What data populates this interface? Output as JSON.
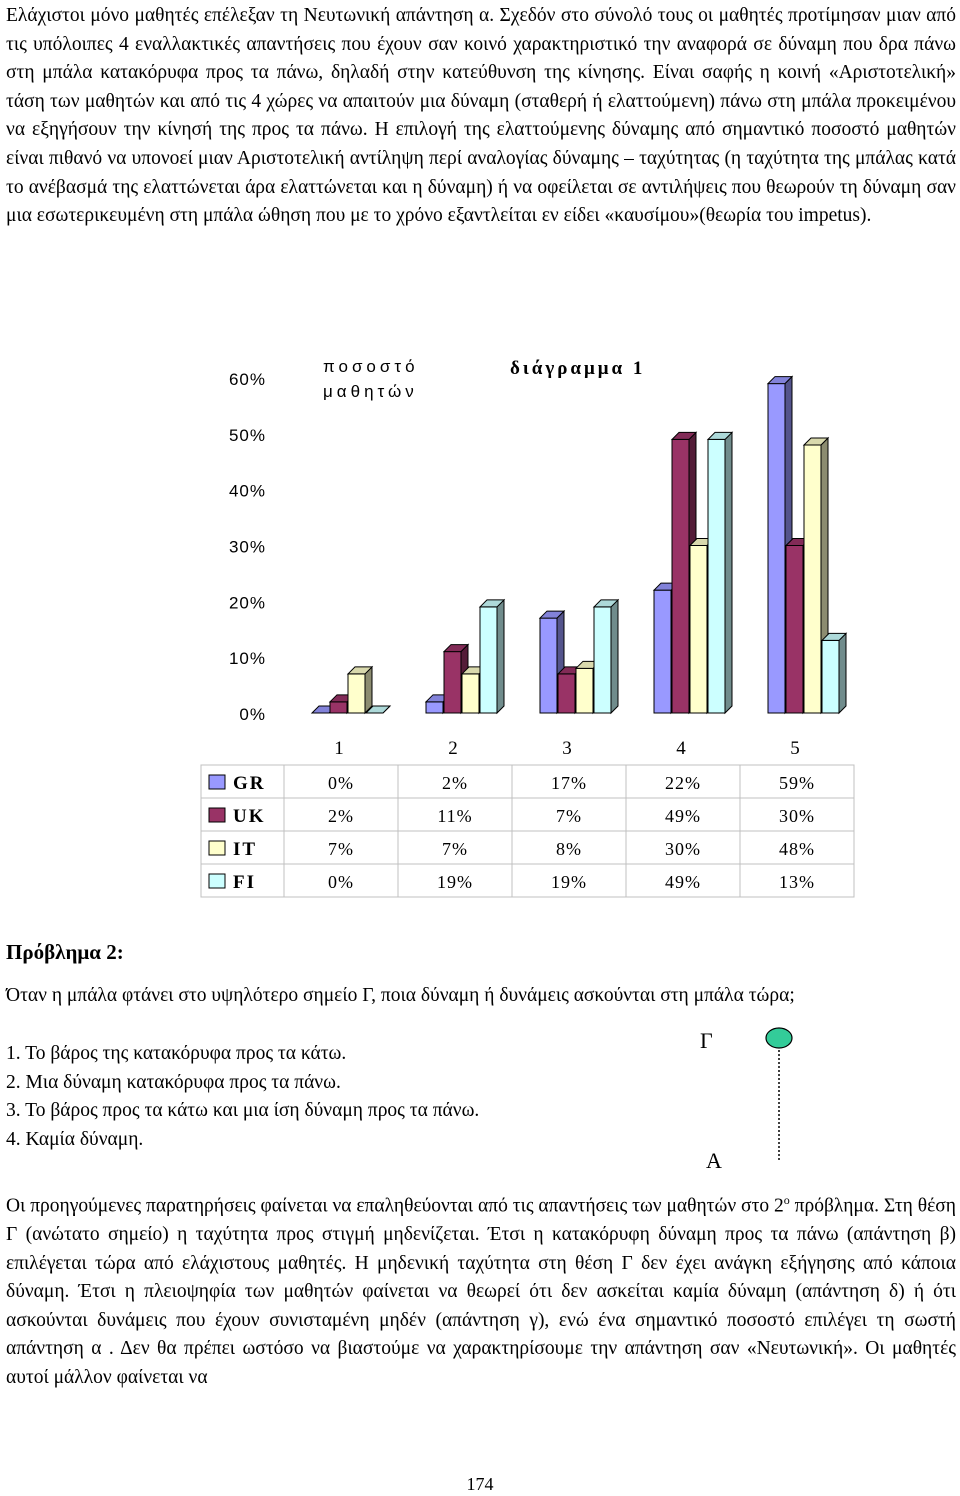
{
  "paragraph1": "Ελάχιστοι μόνο μαθητές επέλεξαν τη Νευτωνική απάντηση α. Σχεδόν στο σύνολό τους οι μαθητές προτίμησαν μιαν από τις υπόλοιπες 4 εναλλακτικές απαντήσεις που έχουν σαν κοινό χαρακτηριστικό την αναφορά σε δύναμη που δρα πάνω στη μπάλα κατακόρυφα προς τα πάνω, δηλαδή στην κατεύθυνση της κίνησης. Είναι σαφής η κοινή «Αριστοτελική» τάση των μαθητών και από τις 4 χώρες να απαιτούν μια δύναμη (σταθερή ή ελαττούμενη) πάνω στη μπάλα προκειμένου να εξηγήσουν την κίνησή της προς τα πάνω. Η επιλογή της ελαττούμενης δύναμης από σημαντικό ποσοστό μαθητών είναι πιθανό να υπονοεί μιαν Αριστοτελική αντίληψη περί αναλογίας δύναμης – ταχύτητας (η ταχύτητα της μπάλας κατά το ανέβασμά της ελαττώνεται άρα ελαττώνεται και η δύναμη) ή να οφείλεται σε αντιλήψεις που θεωρούν τη δύναμη σαν μια εσωτερικευμένη στη μπάλα ώθηση που με το χρόνο εξαντλείται εν είδει «καυσίμου»(θεωρία του impetus).",
  "chart_data": {
    "type": "bar",
    "title": "διάγραμμα 1",
    "ylabel_line1": "ποσοστό",
    "ylabel_line2": "μαθητών",
    "ylim": [
      0,
      60
    ],
    "yticks": [
      "60%",
      "50%",
      "40%",
      "30%",
      "20%",
      "10%",
      "0%"
    ],
    "categories": [
      "1",
      "2",
      "3",
      "4",
      "5"
    ],
    "series": [
      {
        "name": "GR",
        "values": [
          0,
          2,
          17,
          22,
          59
        ],
        "labels": [
          "0%",
          "2%",
          "17%",
          "22%",
          "59%"
        ],
        "color": "#9999ff"
      },
      {
        "name": "UK",
        "values": [
          2,
          11,
          7,
          49,
          30
        ],
        "labels": [
          "2%",
          "11%",
          "7%",
          "49%",
          "30%"
        ],
        "color": "#993366"
      },
      {
        "name": "IT",
        "values": [
          7,
          7,
          8,
          30,
          48
        ],
        "labels": [
          "7%",
          "7%",
          "8%",
          "30%",
          "48%"
        ],
        "color": "#ffffcc"
      },
      {
        "name": "FI",
        "values": [
          0,
          19,
          19,
          49,
          13
        ],
        "labels": [
          "0%",
          "19%",
          "19%",
          "49%",
          "13%"
        ],
        "color": "#ccffff"
      }
    ],
    "grid": false,
    "legend": "data-table-below"
  },
  "problem_heading": "Πρόβλημα 2:",
  "question": "Όταν η μπάλα φτάνει στο υψηλότερο σημείο Γ, ποια δύναμη ή δυνάμεις ασκούνται στη μπάλα τώρα;",
  "options": [
    "1.  Το βάρος της κατακόρυφα προς τα κάτω.",
    "2.  Μια δύναμη κατακόρυφα προς τα πάνω.",
    "3.  Το βάρος προς τα κάτω και μια ίση δύναμη  προς τα πάνω.",
    "4.  Καμία δύναμη."
  ],
  "figure": {
    "top_label": "Γ",
    "bottom_label": "Α",
    "ball_color": "#33cc99"
  },
  "paragraph2_part1": "Οι προηγούμενες παρατηρήσεις φαίνεται να επαληθεύονται από τις απαντήσεις των μαθητών στο 2",
  "superscript": "ο",
  "paragraph2_part2": " πρόβλημα. Στη θέση Γ (ανώτατο σημείο) η ταχύτητα προς στιγμή μηδενίζεται. Έτσι η κατακόρυφη δύναμη προς τα πάνω (απάντηση β) επιλέγεται τώρα  από ελάχιστους μαθητές. Η μηδενική ταχύτητα στη θέση Γ δεν έχει ανάγκη εξήγησης από κάποια δύναμη. Έτσι η πλειοψηφία των μαθητών φαίνεται να θεωρεί ότι δεν ασκείται καμία  δύναμη (απάντηση δ) ή ότι ασκούνται δυνάμεις που έχουν συνισταμένη μηδέν (απάντηση γ), ενώ ένα σημαντικό ποσοστό επιλέγει τη σωστή απάντηση α . Δεν θα πρέπει ωστόσο να βιαστούμε να χαρακτηρίσουμε την απάντηση σαν «Νευτωνική». Οι  μαθητές αυτοί μάλλον φαίνεται να",
  "page_number": "174"
}
